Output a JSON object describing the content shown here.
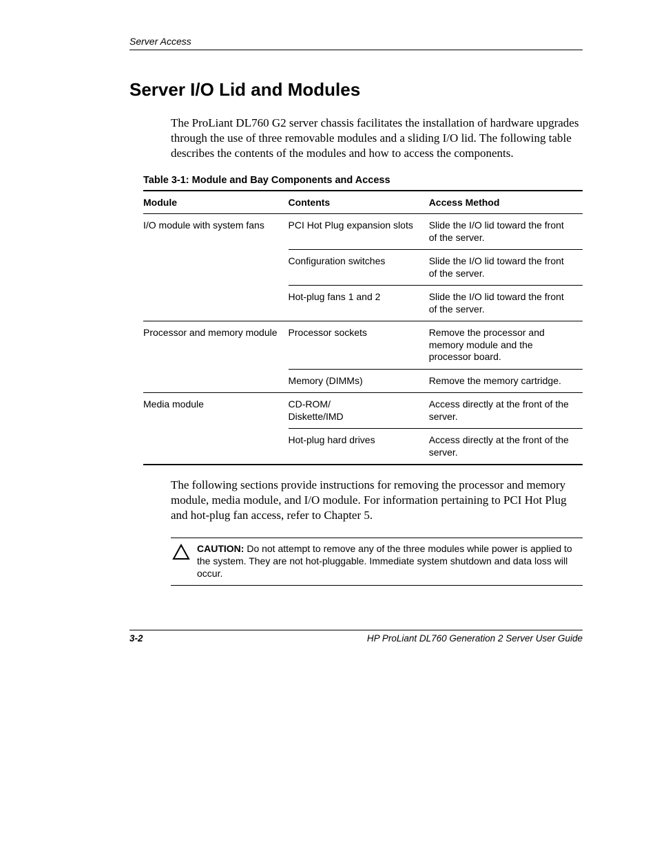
{
  "header": {
    "running": "Server Access"
  },
  "title": "Server I/O Lid and Modules",
  "intro": "The ProLiant DL760 G2 server chassis facilitates the installation of hardware upgrades through the use of three removable modules and a sliding I/O lid. The following table describes the contents of the modules and how to access the components.",
  "table": {
    "caption": "Table 3-1:  Module and Bay Components and Access",
    "columns": [
      "Module",
      "Contents",
      "Access Method"
    ],
    "rows": [
      {
        "module": "I/O module with system fans",
        "contents": "PCI Hot Plug expansion slots",
        "access": "Slide the I/O lid toward the front of the server.",
        "group_first": true,
        "group_last": false
      },
      {
        "module": "",
        "contents": "Configuration switches",
        "access": "Slide the I/O lid toward the front of the server.",
        "group_first": false,
        "group_last": false
      },
      {
        "module": "",
        "contents": "Hot-plug fans 1 and 2",
        "access": "Slide the I/O lid toward the front of the server.",
        "group_first": false,
        "group_last": true
      },
      {
        "module": "Processor and memory module",
        "contents": "Processor sockets",
        "access": "Remove the processor and memory module and the processor board.",
        "group_first": true,
        "group_last": false
      },
      {
        "module": "",
        "contents": "Memory (DIMMs)",
        "access": "Remove the memory cartridge.",
        "group_first": false,
        "group_last": true
      },
      {
        "module": "Media module",
        "contents": "CD-ROM/\nDiskette/IMD",
        "access": "Access directly at the front of the server.",
        "group_first": true,
        "group_last": false
      },
      {
        "module": "",
        "contents": "Hot-plug hard drives",
        "access": "Access directly at the front of the server.",
        "group_first": false,
        "group_last": true
      }
    ]
  },
  "after_table": "The following sections provide instructions for removing the processor and memory module, media module, and I/O module. For information pertaining to PCI Hot Plug and hot-plug fan access, refer to Chapter 5.",
  "caution": {
    "label": "CAUTION:",
    "text": "  Do not attempt to remove any of the three modules while power is applied to the system. They are not hot-pluggable. Immediate system shutdown and data loss will occur."
  },
  "footer": {
    "page": "3-2",
    "doc": "HP ProLiant DL760 Generation 2 Server User Guide"
  }
}
